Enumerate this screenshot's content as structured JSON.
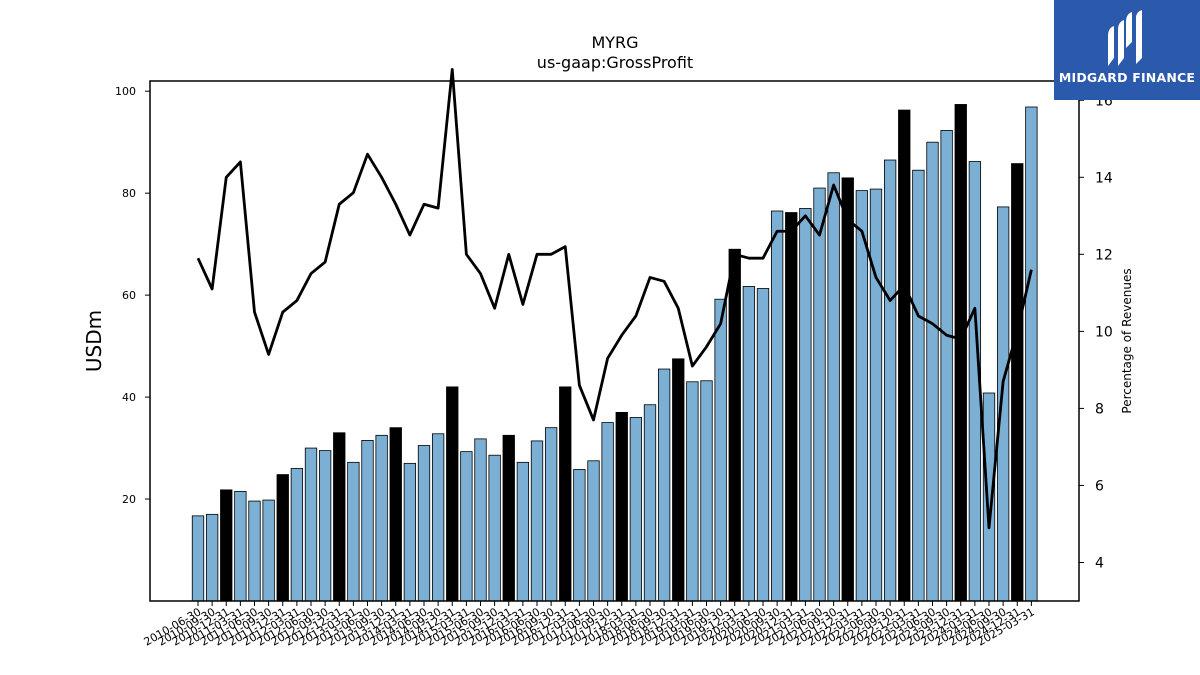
{
  "chart_data": {
    "type": "bar",
    "title": "MYRG",
    "subtitle": "us-gaap:GrossProfit",
    "ylabel": "USDm",
    "y2label": "Percentage of Revenues",
    "ylim": [
      0,
      102
    ],
    "y2lim": [
      3.0,
      16.5
    ],
    "yticks": [
      20,
      40,
      60,
      80,
      100
    ],
    "y2ticks": [
      4,
      6,
      8,
      10,
      12,
      14,
      16
    ],
    "bar_color": "#7bafd4",
    "highlight_color": "#000000",
    "line_color": "#000000",
    "categories": [
      "2010-06-30",
      "2010-09-30",
      "2010-12-31",
      "2011-03-31",
      "2011-06-30",
      "2011-09-30",
      "2011-12-31",
      "2012-03-31",
      "2012-06-30",
      "2012-09-30",
      "2012-12-31",
      "2013-03-31",
      "2013-06-30",
      "2013-09-30",
      "2013-12-31",
      "2014-03-31",
      "2014-06-30",
      "2014-09-30",
      "2014-12-31",
      "2015-03-31",
      "2015-06-30",
      "2015-09-30",
      "2015-12-31",
      "2016-03-31",
      "2016-06-30",
      "2016-09-30",
      "2016-12-31",
      "2017-03-31",
      "2017-06-30",
      "2017-09-30",
      "2017-12-31",
      "2018-03-31",
      "2018-06-30",
      "2018-09-30",
      "2018-12-31",
      "2019-03-31",
      "2019-06-30",
      "2019-09-30",
      "2019-12-31",
      "2020-03-31",
      "2020-06-30",
      "2020-09-30",
      "2020-12-31",
      "2021-03-31",
      "2021-06-30",
      "2021-09-30",
      "2021-12-31",
      "2022-03-31",
      "2022-06-30",
      "2022-09-30",
      "2022-12-31",
      "2023-03-31",
      "2023-06-30",
      "2023-09-30",
      "2023-12-31",
      "2024-03-31",
      "2024-06-30",
      "2024-09-30",
      "2024-12-31",
      "2025-03-31"
    ],
    "series": [
      {
        "kind": "bar",
        "values": [
          16.7,
          17.0,
          21.8,
          21.5,
          19.6,
          19.8,
          24.8,
          26.0,
          30.0,
          29.5,
          33.0,
          27.2,
          31.5,
          32.5,
          34.0,
          27.0,
          30.5,
          32.8,
          42.0,
          29.3,
          31.8,
          28.6,
          32.5,
          27.2,
          31.4,
          34.0,
          42.0,
          25.8,
          27.5,
          35.0,
          37.0,
          36.0,
          38.5,
          45.5,
          47.5,
          43.0,
          43.2,
          59.2,
          69.0,
          61.7,
          61.3,
          76.5,
          76.2,
          77.0,
          81.0,
          84.0,
          83.0,
          80.5,
          80.8,
          86.5,
          96.3,
          84.5,
          90.0,
          92.3,
          97.4,
          86.2,
          40.8,
          77.3,
          85.8,
          96.9
        ],
        "highlighted": [
          false,
          false,
          true,
          false,
          false,
          false,
          true,
          false,
          false,
          false,
          true,
          false,
          false,
          false,
          true,
          false,
          false,
          false,
          true,
          false,
          false,
          false,
          true,
          false,
          false,
          false,
          true,
          false,
          false,
          false,
          true,
          false,
          false,
          false,
          true,
          false,
          false,
          false,
          true,
          false,
          false,
          false,
          true,
          false,
          false,
          false,
          true,
          false,
          false,
          false,
          true,
          false,
          false,
          false,
          true,
          false,
          false,
          false,
          true,
          false
        ]
      },
      {
        "kind": "line",
        "axis": "right",
        "values": [
          11.9,
          11.1,
          14.0,
          14.4,
          10.5,
          9.4,
          10.5,
          10.8,
          11.5,
          11.8,
          13.3,
          13.6,
          14.6,
          14.0,
          13.3,
          12.5,
          13.3,
          13.2,
          16.8,
          12.0,
          11.5,
          10.6,
          12.0,
          10.7,
          12.0,
          12.0,
          12.2,
          8.6,
          7.7,
          9.3,
          9.9,
          10.4,
          11.4,
          11.3,
          10.6,
          9.1,
          9.6,
          10.2,
          12.0,
          11.9,
          11.9,
          12.6,
          12.6,
          13.0,
          12.5,
          13.8,
          12.9,
          12.6,
          11.4,
          10.8,
          11.2,
          10.4,
          10.2,
          9.9,
          9.8,
          10.6,
          4.9,
          8.7,
          10.0,
          11.6
        ]
      }
    ]
  },
  "logo": {
    "text": "MIDGARD FINANCE",
    "background": "#2b5aad"
  }
}
